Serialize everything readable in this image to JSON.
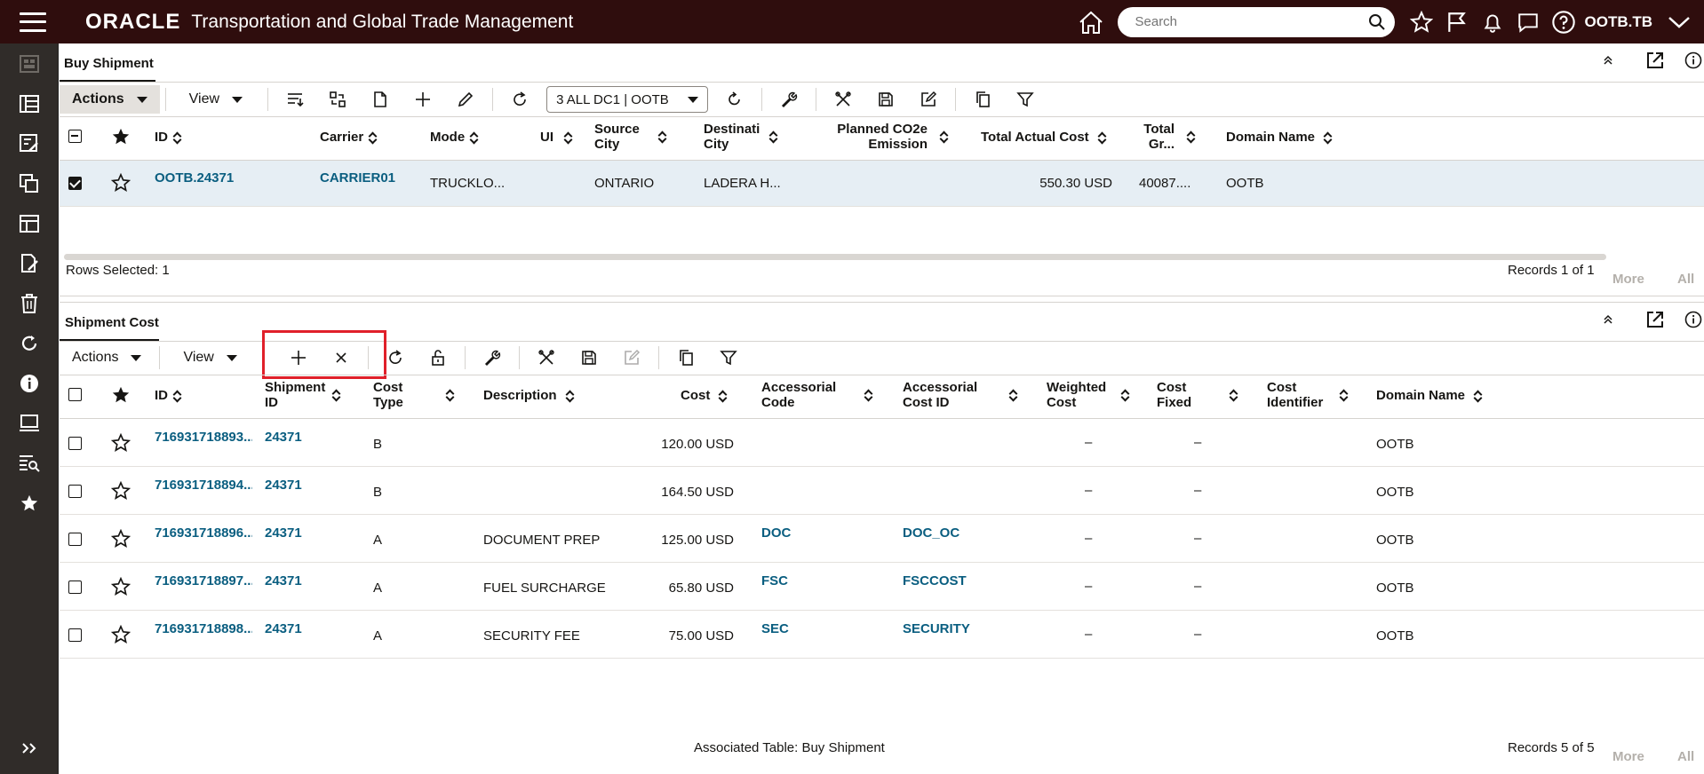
{
  "header": {
    "logo": "ORACLE",
    "title": "Transportation and Global Trade Management",
    "search_placeholder": "Search",
    "user": "OOTB.TB"
  },
  "top_panel": {
    "title": "Buy Shipment",
    "actions_label": "Actions",
    "view_label": "View",
    "saved_query": "3 ALL DC1 | OOTB",
    "columns": [
      "ID",
      "Carrier",
      "Mode",
      "UI",
      "Source City",
      "Destination City",
      "Planned CO2e Emission",
      "Total Actual Cost",
      "Total Gr...",
      "Domain Name"
    ],
    "col_display": {
      "id": "ID",
      "carrier": "Carrier",
      "mode": "Mode",
      "ui": "UI",
      "source1": "Source",
      "source2": "City",
      "dest1": "Destinati",
      "dest2": "City",
      "co2_1": "Planned CO2e",
      "co2_2": "Emission",
      "total_cost": "Total Actual Cost",
      "total_gr1": "Total",
      "total_gr2": "Gr...",
      "domain": "Domain Name"
    },
    "rows": [
      {
        "id": "OOTB.24371",
        "carrier": "CARRIER01",
        "mode": "TRUCKLO...",
        "source_city": "ONTARIO",
        "dest_city": "LADERA H...",
        "total_cost": "550.30 USD",
        "total_gr": "40087....",
        "domain": "OOTB"
      }
    ],
    "rows_selected": "Rows Selected: 1",
    "records": "Records 1 of 1",
    "more": "More",
    "all": "All"
  },
  "bottom_panel": {
    "title": "Shipment Cost",
    "actions_label": "Actions",
    "view_label": "View",
    "col_display": {
      "id": "ID",
      "ship1": "Shipment",
      "ship2": "ID",
      "ct1": "Cost",
      "ct2": "Type",
      "desc": "Description",
      "cost": "Cost",
      "ac1": "Accessorial",
      "ac2": "Code",
      "acid1": "Accessorial",
      "acid2": "Cost ID",
      "wc1": "Weighted",
      "wc2": "Cost",
      "cf1": "Cost",
      "cf2": "Fixed",
      "ci1": "Cost",
      "ci2": "Identifier",
      "domain": "Domain Name"
    },
    "rows": [
      {
        "id": "716931718893...",
        "shipment_id": "24371",
        "cost_type": "B",
        "description": "",
        "cost": "120.00 USD",
        "acc_code": "",
        "acc_cost_id": "",
        "weighted": "–",
        "fixed": "–",
        "domain": "OOTB"
      },
      {
        "id": "716931718894...",
        "shipment_id": "24371",
        "cost_type": "B",
        "description": "",
        "cost": "164.50 USD",
        "acc_code": "",
        "acc_cost_id": "",
        "weighted": "–",
        "fixed": "–",
        "domain": "OOTB"
      },
      {
        "id": "716931718896...",
        "shipment_id": "24371",
        "cost_type": "A",
        "description": "DOCUMENT PREP",
        "cost": "125.00 USD",
        "acc_code": "DOC",
        "acc_cost_id": "DOC_OC",
        "weighted": "–",
        "fixed": "–",
        "domain": "OOTB"
      },
      {
        "id": "716931718897...",
        "shipment_id": "24371",
        "cost_type": "A",
        "description": "FUEL SURCHARGE",
        "cost": "65.80 USD",
        "acc_code": "FSC",
        "acc_cost_id": "FSCCOST",
        "weighted": "–",
        "fixed": "–",
        "domain": "OOTB"
      },
      {
        "id": "716931718898...",
        "shipment_id": "24371",
        "cost_type": "A",
        "description": "SECURITY FEE",
        "cost": "75.00 USD",
        "acc_code": "SEC",
        "acc_cost_id": "SECURITY",
        "weighted": "–",
        "fixed": "–",
        "domain": "OOTB"
      }
    ],
    "associated": "Associated Table: Buy Shipment",
    "records": "Records 5 of 5",
    "more": "More",
    "all": "All"
  },
  "colors": {
    "header_bg": "#2f0d0d",
    "nav_bg": "#302c29",
    "link": "#0a5e80",
    "selected_row": "#e6eef4",
    "highlight_box": "#e0202a"
  },
  "nav_icons": [
    "dashboard-icon",
    "board-icon",
    "edit-list-icon",
    "copy-icon",
    "layout-icon",
    "document-edit-icon",
    "trash-icon",
    "refresh-icon",
    "info-icon",
    "monitor-icon",
    "table-search-icon",
    "star-icon"
  ]
}
